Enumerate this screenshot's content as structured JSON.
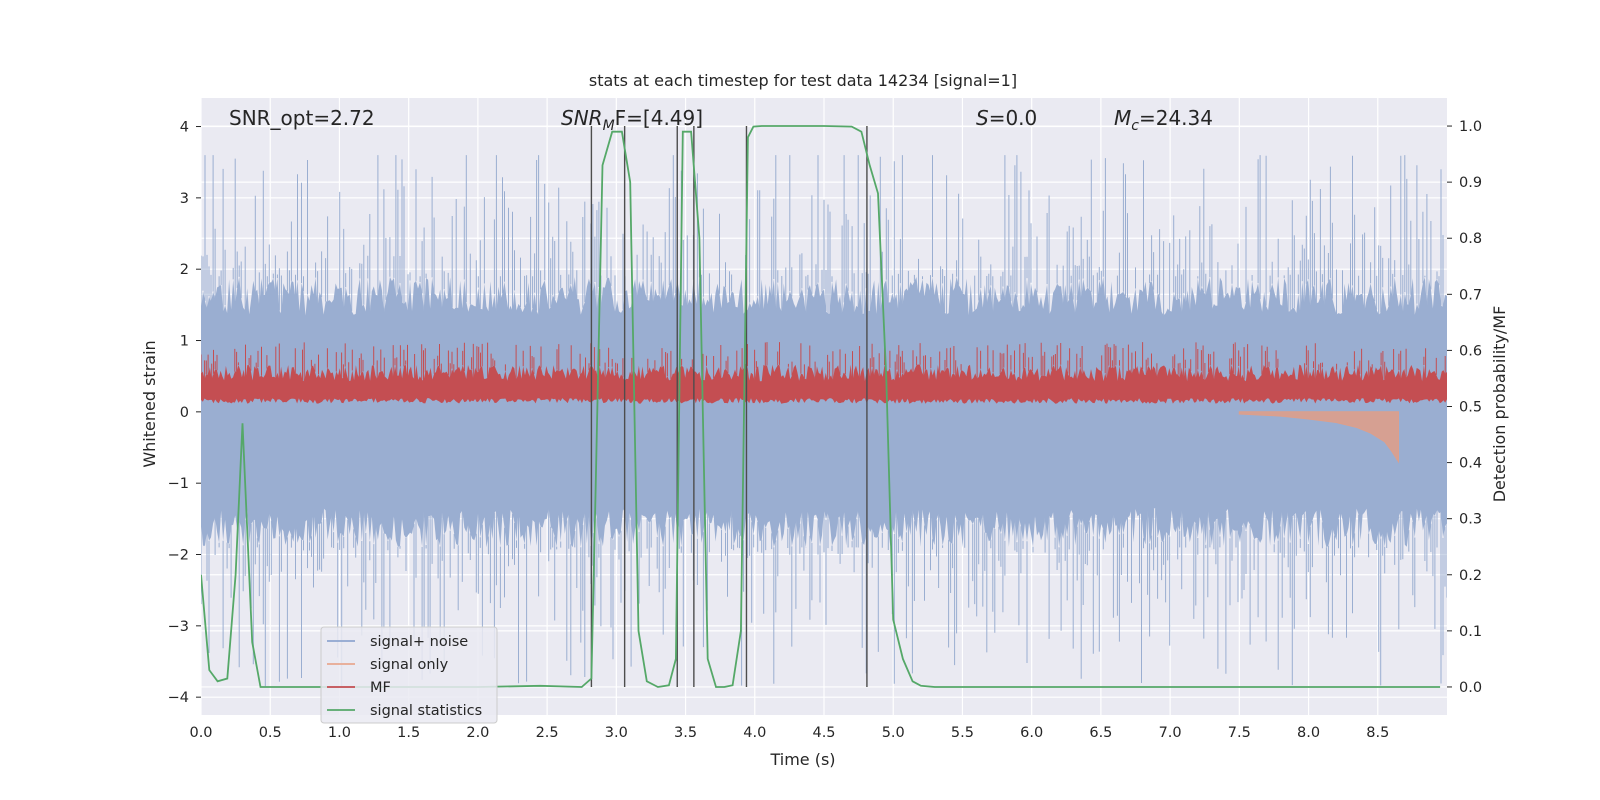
{
  "chart_data": {
    "type": "line",
    "title": "stats at each timestep for test data 14234 [signal=1]",
    "xlabel": "Time (s)",
    "ylabel": "Whitened strain",
    "ylabel_right": "Detection probability/MF",
    "xlim": [
      0.0,
      9.0
    ],
    "ylim": [
      -4.25,
      4.4
    ],
    "ylim_right": [
      -0.05,
      1.05
    ],
    "x_ticks": [
      "0.0",
      "0.5",
      "1.0",
      "1.5",
      "2.0",
      "2.5",
      "3.0",
      "3.5",
      "4.0",
      "4.5",
      "5.0",
      "5.5",
      "6.0",
      "6.5",
      "7.0",
      "7.5",
      "8.0",
      "8.5"
    ],
    "y_ticks": [
      "4",
      "3",
      "2",
      "1",
      "0",
      "−1",
      "−2",
      "−3",
      "−4"
    ],
    "y_ticks_right": [
      "1.0",
      "0.9",
      "0.8",
      "0.7",
      "0.6",
      "0.5",
      "0.4",
      "0.3",
      "0.2",
      "0.1",
      "0.0"
    ],
    "annotations": {
      "snr_opt": "SNR_opt=2.72",
      "snr_mf_base": "SNR",
      "snr_mf_sub": "M",
      "snr_mf_rest": "F=[4.49]",
      "s_sym": "S",
      "s_val": "=0.0",
      "mc_sym": "M",
      "mc_sub": "c",
      "mc_val": "=24.34"
    },
    "legend": {
      "position": "lower-left",
      "entries": [
        {
          "label": "signal+ noise",
          "color": "#8fa6cf"
        },
        {
          "label": "signal only",
          "color": "#e8a890"
        },
        {
          "label": "MF",
          "color": "#c44e52"
        },
        {
          "label": "signal statistics",
          "color": "#55a868"
        }
      ]
    },
    "series": [
      {
        "name": "signal+ noise",
        "color": "#9aaed1",
        "description": "dense whitened strain, roughly between -4 and 4, mostly within ±1.6"
      },
      {
        "name": "signal only",
        "color": "#dd9f8b",
        "description": "chirp growing from ~7.5s, peak about -0.7 at 8.65s",
        "x": [
          7.5,
          7.8,
          8.0,
          8.2,
          8.35,
          8.45,
          8.55,
          8.6,
          8.65
        ],
        "y": [
          -0.03,
          -0.06,
          -0.1,
          -0.15,
          -0.22,
          -0.3,
          -0.42,
          -0.55,
          -0.7
        ]
      },
      {
        "name": "MF",
        "color": "#c44e52",
        "description": "matched-filter output on right axis, ~0.5-0.6 fluctuating"
      },
      {
        "name": "signal statistics",
        "color": "#55a868",
        "x": [
          0.0,
          0.06,
          0.12,
          0.19,
          0.25,
          0.3,
          0.37,
          0.43,
          0.5,
          1.0,
          1.5,
          2.0,
          2.45,
          2.6,
          2.75,
          2.82,
          2.85,
          2.9,
          2.97,
          3.04,
          3.1,
          3.16,
          3.22,
          3.3,
          3.38,
          3.43,
          3.48,
          3.54,
          3.6,
          3.66,
          3.72,
          3.78,
          3.84,
          3.9,
          3.95,
          3.99,
          4.05,
          4.5,
          4.7,
          4.77,
          4.83,
          4.89,
          4.95,
          5.0,
          5.07,
          5.14,
          5.2,
          5.3,
          6.0,
          7.0,
          8.0,
          8.95
        ],
        "y": [
          0.2,
          0.03,
          0.01,
          0.015,
          0.2,
          0.47,
          0.08,
          0.0,
          0.0,
          0.0,
          0.0,
          0.0,
          0.002,
          0.001,
          0.0,
          0.015,
          0.35,
          0.93,
          0.99,
          0.99,
          0.9,
          0.1,
          0.01,
          0.0,
          0.003,
          0.05,
          0.99,
          0.99,
          0.8,
          0.05,
          0.0,
          0.0,
          0.003,
          0.1,
          0.98,
          0.999,
          1.0,
          1.0,
          0.999,
          0.99,
          0.93,
          0.88,
          0.55,
          0.12,
          0.05,
          0.01,
          0.002,
          0.0,
          0.0,
          0.0,
          0.0,
          0.0
        ]
      }
    ],
    "vertical_markers_s": [
      2.82,
      3.06,
      3.44,
      3.56,
      3.94,
      4.81
    ]
  }
}
